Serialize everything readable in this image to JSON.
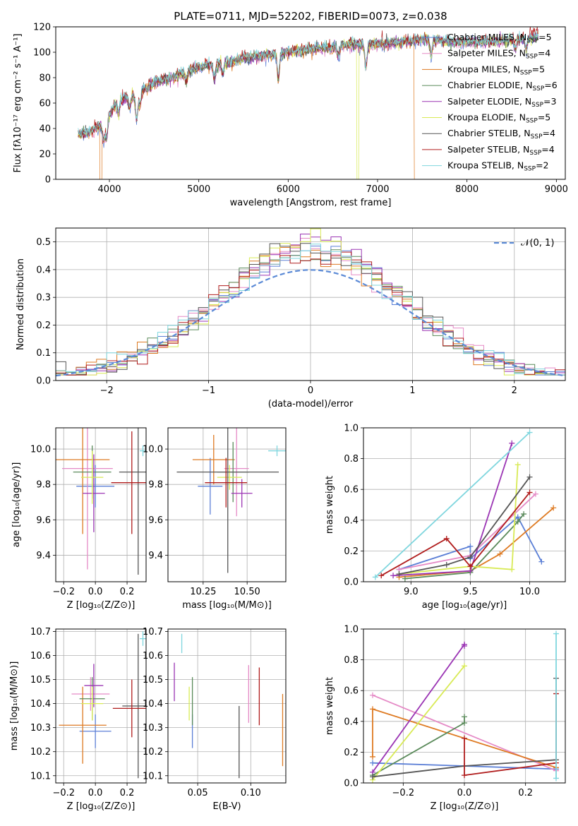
{
  "colors": {
    "Chabrier MILES": "#5b7fd6",
    "Salpeter MILES": "#e58ac6",
    "Kroupa MILES": "#de7a22",
    "Chabrier ELODIE": "#5a8a5a",
    "Salpeter ELODIE": "#9b35b4",
    "Kroupa ELODIE": "#d8ea55",
    "Chabrier STELIB": "#555555",
    "Salpeter STELIB": "#b01c1c",
    "Kroupa STELIB": "#7fd6de"
  },
  "chart_data": [
    {
      "panel": "spectrum",
      "type": "line",
      "title": "PLATE=0711, MJD=52202, FIBERID=0073, z=0.038",
      "xlabel": "wavelength [Angstrom, rest frame]",
      "ylabel": "Flux [fλ10⁻¹⁷ erg cm⁻² s⁻¹ A⁻¹]",
      "xlim": [
        3400,
        9100
      ],
      "ylim": [
        0,
        120
      ],
      "xticks": [
        "4000",
        "5000",
        "6000",
        "7000",
        "8000",
        "9000"
      ],
      "yticks": [
        "0",
        "20",
        "40",
        "60",
        "80",
        "100",
        "120"
      ],
      "legend": "top-right",
      "series": [
        {
          "name": "Chabrier MILES, N<tspan font-size='9' dy='3'>SSP</tspan><tspan dy='-3'>=5</tspan>",
          "label_main": "Chabrier MILES, N",
          "label_sub": "SSP",
          "label_tail": "=5"
        },
        {
          "label_main": "Salpeter MILES, N",
          "label_sub": "SSP",
          "label_tail": "=4"
        },
        {
          "label_main": "Kroupa MILES, N",
          "label_sub": "SSP",
          "label_tail": "=5"
        },
        {
          "label_main": "Chabrier ELODIE, N",
          "label_sub": "SSP",
          "label_tail": "=6"
        },
        {
          "label_main": "Salpeter ELODIE, N",
          "label_sub": "SSP",
          "label_tail": "=3"
        },
        {
          "label_main": "Kroupa ELODIE, N",
          "label_sub": "SSP",
          "label_tail": "=5"
        },
        {
          "label_main": "Chabrier STELIB, N",
          "label_sub": "SSP",
          "label_tail": "=4"
        },
        {
          "label_main": "Salpeter STELIB, N",
          "label_sub": "SSP",
          "label_tail": "=4"
        },
        {
          "label_main": "Kroupa STELIB, N",
          "label_sub": "SSP",
          "label_tail": "=2"
        }
      ],
      "continuum": [
        [
          3650,
          35
        ],
        [
          3800,
          38
        ],
        [
          3950,
          45
        ],
        [
          4100,
          62
        ],
        [
          4300,
          66
        ],
        [
          4500,
          76
        ],
        [
          4700,
          80
        ],
        [
          4900,
          86
        ],
        [
          5100,
          90
        ],
        [
          5300,
          91
        ],
        [
          5500,
          95
        ],
        [
          5700,
          97
        ],
        [
          5900,
          99
        ],
        [
          6100,
          101
        ],
        [
          6300,
          103
        ],
        [
          6500,
          104
        ],
        [
          6700,
          106
        ],
        [
          6900,
          106
        ],
        [
          7100,
          107
        ],
        [
          7300,
          108
        ],
        [
          7500,
          110
        ],
        [
          7700,
          109
        ],
        [
          7900,
          108
        ],
        [
          8100,
          108
        ],
        [
          8300,
          108
        ],
        [
          8500,
          110
        ],
        [
          8700,
          111
        ],
        [
          8800,
          112
        ]
      ],
      "absorption": [
        [
          3934,
          15
        ],
        [
          3968,
          15
        ],
        [
          4102,
          10
        ],
        [
          4226,
          8
        ],
        [
          4305,
          20
        ],
        [
          4340,
          10
        ],
        [
          4861,
          8
        ],
        [
          5175,
          12
        ],
        [
          5270,
          8
        ],
        [
          5890,
          20
        ],
        [
          6563,
          8
        ],
        [
          6870,
          18
        ],
        [
          7600,
          12
        ],
        [
          8542,
          8
        ],
        [
          8662,
          8
        ]
      ],
      "drops": [
        {
          "model": "Kroupa ELODIE",
          "x": 6780
        },
        {
          "model": "Kroupa MILES",
          "x": 7420
        },
        {
          "model": "Kroupa MILES",
          "x": 3905
        }
      ]
    },
    {
      "panel": "residuals",
      "type": "step",
      "xlabel": "(data-model)/error",
      "ylabel": "Normed distribution",
      "xlim": [
        -2.5,
        2.5
      ],
      "ylim": [
        0,
        0.55
      ],
      "xticks": [
        "−2",
        "−1",
        "0",
        "1",
        "2"
      ],
      "yticks": [
        "0.0",
        "0.1",
        "0.2",
        "0.3",
        "0.4",
        "0.5"
      ],
      "legend": "top-right",
      "reference_label": "𝒩(0, 1)",
      "bin_width": 0.1
    },
    {
      "panel": "age-vs-Z",
      "type": "errorbar",
      "xlabel": "Z [log₁₀(Z/Z⊙)]",
      "ylabel": "age  [log₁₀(age/yr)]",
      "xlim": [
        -0.25,
        0.32
      ],
      "ylim": [
        9.25,
        10.12
      ],
      "xticks": [
        "−0.2",
        "0.0",
        "0.2"
      ],
      "yticks": [
        "9.4",
        "9.6",
        "9.8",
        "10.0"
      ],
      "points": [
        {
          "model": "Chabrier MILES",
          "x": 0.0,
          "xerr": 0.12,
          "y": 9.79,
          "yerr": 0.12
        },
        {
          "model": "Salpeter MILES",
          "x": -0.05,
          "xerr": 0.16,
          "y": 9.89,
          "yerr": 0.57
        },
        {
          "model": "Kroupa MILES",
          "x": -0.08,
          "xerr": 0.17,
          "y": 9.94,
          "yerr": 0.42
        },
        {
          "model": "Chabrier ELODIE",
          "x": -0.02,
          "xerr": 0.12,
          "y": 9.87,
          "yerr": 0.15
        },
        {
          "model": "Salpeter ELODIE",
          "x": -0.01,
          "xerr": 0.07,
          "y": 9.75,
          "yerr": 0.22
        },
        {
          "model": "Kroupa ELODIE",
          "x": -0.02,
          "xerr": 0.07,
          "y": 9.84,
          "yerr": 0.15
        },
        {
          "model": "Chabrier STELIB",
          "x": 0.27,
          "xerr": 0.12,
          "y": 9.87,
          "yerr": 0.58
        },
        {
          "model": "Salpeter STELIB",
          "x": 0.23,
          "xerr": 0.13,
          "y": 9.81,
          "yerr": 0.29
        },
        {
          "model": "Kroupa STELIB",
          "x": 0.3,
          "xerr": 0.02,
          "y": 9.99,
          "yerr": 0.03
        }
      ]
    },
    {
      "panel": "age-vs-mass",
      "type": "errorbar",
      "xlabel": "mass [log₁₀(M/M⊙)]",
      "ylabel": "",
      "xlim": [
        10.05,
        10.72
      ],
      "ylim": [
        9.25,
        10.12
      ],
      "xticks": [
        "10.25",
        "10.50"
      ],
      "yticks": [
        "9.4",
        "9.6",
        "9.8",
        "10.0"
      ],
      "points": [
        {
          "model": "Chabrier MILES",
          "x": 10.29,
          "xerr": 0.07,
          "y": 9.79,
          "yerr": 0.16
        },
        {
          "model": "Salpeter MILES",
          "x": 10.44,
          "xerr": 0.07,
          "y": 9.89,
          "yerr": 0.27
        },
        {
          "model": "Kroupa MILES",
          "x": 10.31,
          "xerr": 0.12,
          "y": 9.94,
          "yerr": 0.14
        },
        {
          "model": "Chabrier ELODIE",
          "x": 10.42,
          "xerr": 0.09,
          "y": 9.87,
          "yerr": 0.17
        },
        {
          "model": "Salpeter ELODIE",
          "x": 10.47,
          "xerr": 0.06,
          "y": 9.75,
          "yerr": 0.08
        },
        {
          "model": "Kroupa ELODIE",
          "x": 10.4,
          "xerr": 0.07,
          "y": 9.84,
          "yerr": 0.07
        },
        {
          "model": "Chabrier STELIB",
          "x": 10.39,
          "xerr": 0.29,
          "y": 9.87,
          "yerr": 0.57
        },
        {
          "model": "Salpeter STELIB",
          "x": 10.38,
          "xerr": 0.12,
          "y": 9.81,
          "yerr": 0.14
        },
        {
          "model": "Kroupa STELIB",
          "x": 10.67,
          "xerr": 0.05,
          "y": 9.99,
          "yerr": 0.03
        }
      ]
    },
    {
      "panel": "weight-vs-age",
      "type": "line",
      "xlabel": "age  [log₁₀(age/yr)]",
      "ylabel": "mass weight",
      "xlim": [
        8.6,
        10.3
      ],
      "ylim": [
        0,
        1.0
      ],
      "xticks": [
        "9.0",
        "9.5",
        "10.0"
      ],
      "yticks": [
        "0.0",
        "0.2",
        "0.4",
        "0.6",
        "0.8",
        "1.0"
      ],
      "series": [
        {
          "model": "Chabrier MILES",
          "x": [
            8.9,
            9.5,
            9.5,
            9.9,
            10.1
          ],
          "y": [
            0.08,
            0.23,
            0.15,
            0.42,
            0.13
          ]
        },
        {
          "model": "Salpeter MILES",
          "x": [
            8.9,
            9.5,
            10.05
          ],
          "y": [
            0.08,
            0.17,
            0.57
          ]
        },
        {
          "model": "Kroupa MILES",
          "x": [
            8.9,
            9.5,
            9.75,
            10.2
          ],
          "y": [
            0.03,
            0.07,
            0.18,
            0.48
          ]
        },
        {
          "model": "Chabrier ELODIE",
          "x": [
            8.95,
            9.5,
            9.9,
            9.95
          ],
          "y": [
            0.02,
            0.06,
            0.39,
            0.44
          ]
        },
        {
          "model": "Salpeter ELODIE",
          "x": [
            8.85,
            9.5,
            9.85
          ],
          "y": [
            0.04,
            0.07,
            0.9
          ]
        },
        {
          "model": "Kroupa ELODIE",
          "x": [
            8.9,
            9.5,
            9.85,
            9.9
          ],
          "y": [
            0.05,
            0.1,
            0.08,
            0.76
          ]
        },
        {
          "model": "Chabrier STELIB",
          "x": [
            8.9,
            9.3,
            9.5,
            10.0
          ],
          "y": [
            0.05,
            0.11,
            0.16,
            0.68
          ]
        },
        {
          "model": "Salpeter STELIB",
          "x": [
            8.75,
            9.3,
            9.5,
            10.0
          ],
          "y": [
            0.04,
            0.28,
            0.1,
            0.58
          ]
        },
        {
          "model": "Kroupa STELIB",
          "x": [
            8.7,
            10.0
          ],
          "y": [
            0.03,
            0.97
          ]
        }
      ]
    },
    {
      "panel": "mass-vs-Z",
      "type": "errorbar",
      "xlabel": "Z [log₁₀(Z/Z⊙)]",
      "ylabel": "mass [log₁₀(M/M⊙)]",
      "xlim": [
        -0.25,
        0.32
      ],
      "ylim": [
        10.07,
        10.71
      ],
      "xticks": [
        "−0.2",
        "0.0",
        "0.2"
      ],
      "yticks": [
        "10.1",
        "10.2",
        "10.3",
        "10.4",
        "10.5",
        "10.6",
        "10.7"
      ],
      "points": [
        {
          "model": "Chabrier MILES",
          "x": 0.0,
          "xerr": 0.1,
          "y": 10.285,
          "yerr": 0.07
        },
        {
          "model": "Salpeter MILES",
          "x": -0.03,
          "xerr": 0.12,
          "y": 10.44,
          "yerr": 0.07
        },
        {
          "model": "Kroupa MILES",
          "x": -0.08,
          "xerr": 0.15,
          "y": 10.31,
          "yerr": 0.16
        },
        {
          "model": "Chabrier ELODIE",
          "x": -0.02,
          "xerr": 0.08,
          "y": 10.42,
          "yerr": 0.09
        },
        {
          "model": "Salpeter ELODIE",
          "x": -0.01,
          "xerr": 0.06,
          "y": 10.475,
          "yerr": 0.09
        },
        {
          "model": "Kroupa ELODIE",
          "x": -0.02,
          "xerr": 0.07,
          "y": 10.4,
          "yerr": 0.07
        },
        {
          "model": "Chabrier STELIB",
          "x": 0.27,
          "xerr": 0.1,
          "y": 10.39,
          "yerr": 0.3
        },
        {
          "model": "Salpeter STELIB",
          "x": 0.23,
          "xerr": 0.12,
          "y": 10.38,
          "yerr": 0.12
        },
        {
          "model": "Kroupa STELIB",
          "x": 0.3,
          "xerr": 0.02,
          "y": 10.67,
          "yerr": 0.03
        }
      ]
    },
    {
      "panel": "mass-vs-EBV",
      "type": "errorbar",
      "xlabel": "E(B-V)",
      "ylabel": "",
      "xlim": [
        0.022,
        0.133
      ],
      "ylim": [
        10.07,
        10.71
      ],
      "xticks": [
        "0.05",
        "0.10"
      ],
      "yticks": [
        "10.1",
        "10.2",
        "10.3",
        "10.4",
        "10.5",
        "10.6",
        "10.7"
      ],
      "points": [
        {
          "model": "Chabrier MILES",
          "x": 0.045,
          "yerr": 0.07,
          "y": 10.285
        },
        {
          "model": "Salpeter MILES",
          "x": 0.098,
          "yerr": 0.12,
          "y": 10.44
        },
        {
          "model": "Kroupa MILES",
          "x": 0.13,
          "yerr": 0.15,
          "y": 10.29
        },
        {
          "model": "Chabrier ELODIE",
          "x": 0.045,
          "yerr": 0.1,
          "y": 10.41
        },
        {
          "model": "Salpeter ELODIE",
          "x": 0.028,
          "yerr": 0.08,
          "y": 10.49
        },
        {
          "model": "Kroupa ELODIE",
          "x": 0.042,
          "yerr": 0.07,
          "y": 10.4
        },
        {
          "model": "Chabrier STELIB",
          "x": 0.089,
          "yerr": 0.15,
          "y": 10.24
        },
        {
          "model": "Salpeter STELIB",
          "x": 0.108,
          "yerr": 0.12,
          "y": 10.43
        },
        {
          "model": "Kroupa STELIB",
          "x": 0.035,
          "yerr": 0.04,
          "y": 10.65
        }
      ]
    },
    {
      "panel": "weight-vs-Z",
      "type": "line",
      "xlabel": "Z [log₁₀(Z/Z⊙)]",
      "ylabel": "mass weight",
      "xlim": [
        -0.33,
        0.33
      ],
      "ylim": [
        0,
        1.0
      ],
      "xticks": [
        "−0.2",
        "0.0",
        "0.2"
      ],
      "yticks": [
        "0.0",
        "0.2",
        "0.4",
        "0.6",
        "0.8",
        "1.0"
      ],
      "series": [
        {
          "model": "Chabrier MILES",
          "x": [
            -0.3,
            0.0,
            0.3
          ],
          "y": [
            0.13,
            0.11,
            0.09
          ]
        },
        {
          "model": "Salpeter MILES",
          "x": [
            -0.3,
            0.3
          ],
          "y": [
            0.57,
            0.08
          ]
        },
        {
          "model": "Kroupa MILES",
          "x": [
            -0.3,
            -0.3,
            0.3
          ],
          "y": [
            0.17,
            0.48,
            0.1
          ]
        },
        {
          "model": "Chabrier ELODIE",
          "x": [
            -0.3,
            0.0,
            0.0
          ],
          "y": [
            0.05,
            0.39,
            0.43
          ]
        },
        {
          "model": "Salpeter ELODIE",
          "x": [
            -0.3,
            0.0,
            0.0
          ],
          "y": [
            0.07,
            0.9,
            0.89
          ]
        },
        {
          "model": "Kroupa ELODIE",
          "x": [
            -0.3,
            0.0
          ],
          "y": [
            0.02,
            0.76
          ]
        },
        {
          "model": "Chabrier STELIB",
          "x": [
            -0.3,
            0.0,
            0.3,
            0.3
          ],
          "y": [
            0.04,
            0.11,
            0.15,
            0.68
          ]
        },
        {
          "model": "Salpeter STELIB",
          "x": [
            0.0,
            0.0,
            0.3,
            0.3
          ],
          "y": [
            0.29,
            0.05,
            0.13,
            0.58
          ]
        },
        {
          "model": "Kroupa STELIB",
          "x": [
            0.3,
            0.3
          ],
          "y": [
            0.03,
            0.97
          ]
        }
      ]
    }
  ]
}
